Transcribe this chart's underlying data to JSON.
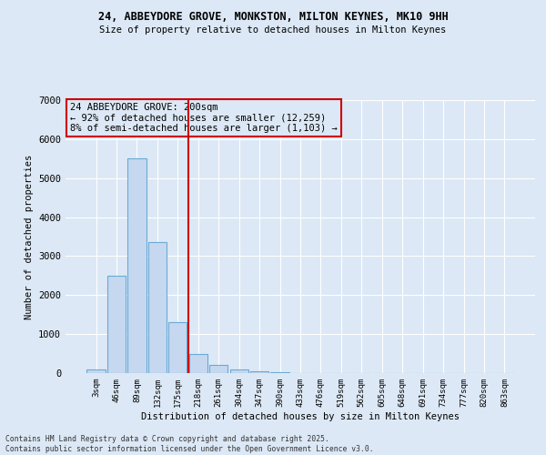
{
  "title1": "24, ABBEYDORE GROVE, MONKSTON, MILTON KEYNES, MK10 9HH",
  "title2": "Size of property relative to detached houses in Milton Keynes",
  "xlabel": "Distribution of detached houses by size in Milton Keynes",
  "ylabel": "Number of detached properties",
  "categories": [
    "3sqm",
    "46sqm",
    "89sqm",
    "132sqm",
    "175sqm",
    "218sqm",
    "261sqm",
    "304sqm",
    "347sqm",
    "390sqm",
    "433sqm",
    "476sqm",
    "519sqm",
    "562sqm",
    "605sqm",
    "648sqm",
    "691sqm",
    "734sqm",
    "777sqm",
    "820sqm",
    "863sqm"
  ],
  "values": [
    100,
    2500,
    5500,
    3350,
    1300,
    480,
    215,
    100,
    50,
    30,
    5,
    5,
    0,
    0,
    0,
    0,
    0,
    0,
    0,
    0,
    0
  ],
  "bar_color": "#c5d8f0",
  "bar_edge_color": "#6aaad4",
  "vline_pos": 4.5,
  "vline_color": "#cc0000",
  "annotation_text": "24 ABBEYDORE GROVE: 200sqm\n← 92% of detached houses are smaller (12,259)\n8% of semi-detached houses are larger (1,103) →",
  "annotation_box_edgecolor": "#cc0000",
  "bg_color": "#dce8f5",
  "plot_bg_color": "#dce8f5",
  "grid_color": "#ffffff",
  "ylim": [
    0,
    7000
  ],
  "yticks": [
    0,
    1000,
    2000,
    3000,
    4000,
    5000,
    6000,
    7000
  ],
  "footer1": "Contains HM Land Registry data © Crown copyright and database right 2025.",
  "footer2": "Contains public sector information licensed under the Open Government Licence v3.0."
}
